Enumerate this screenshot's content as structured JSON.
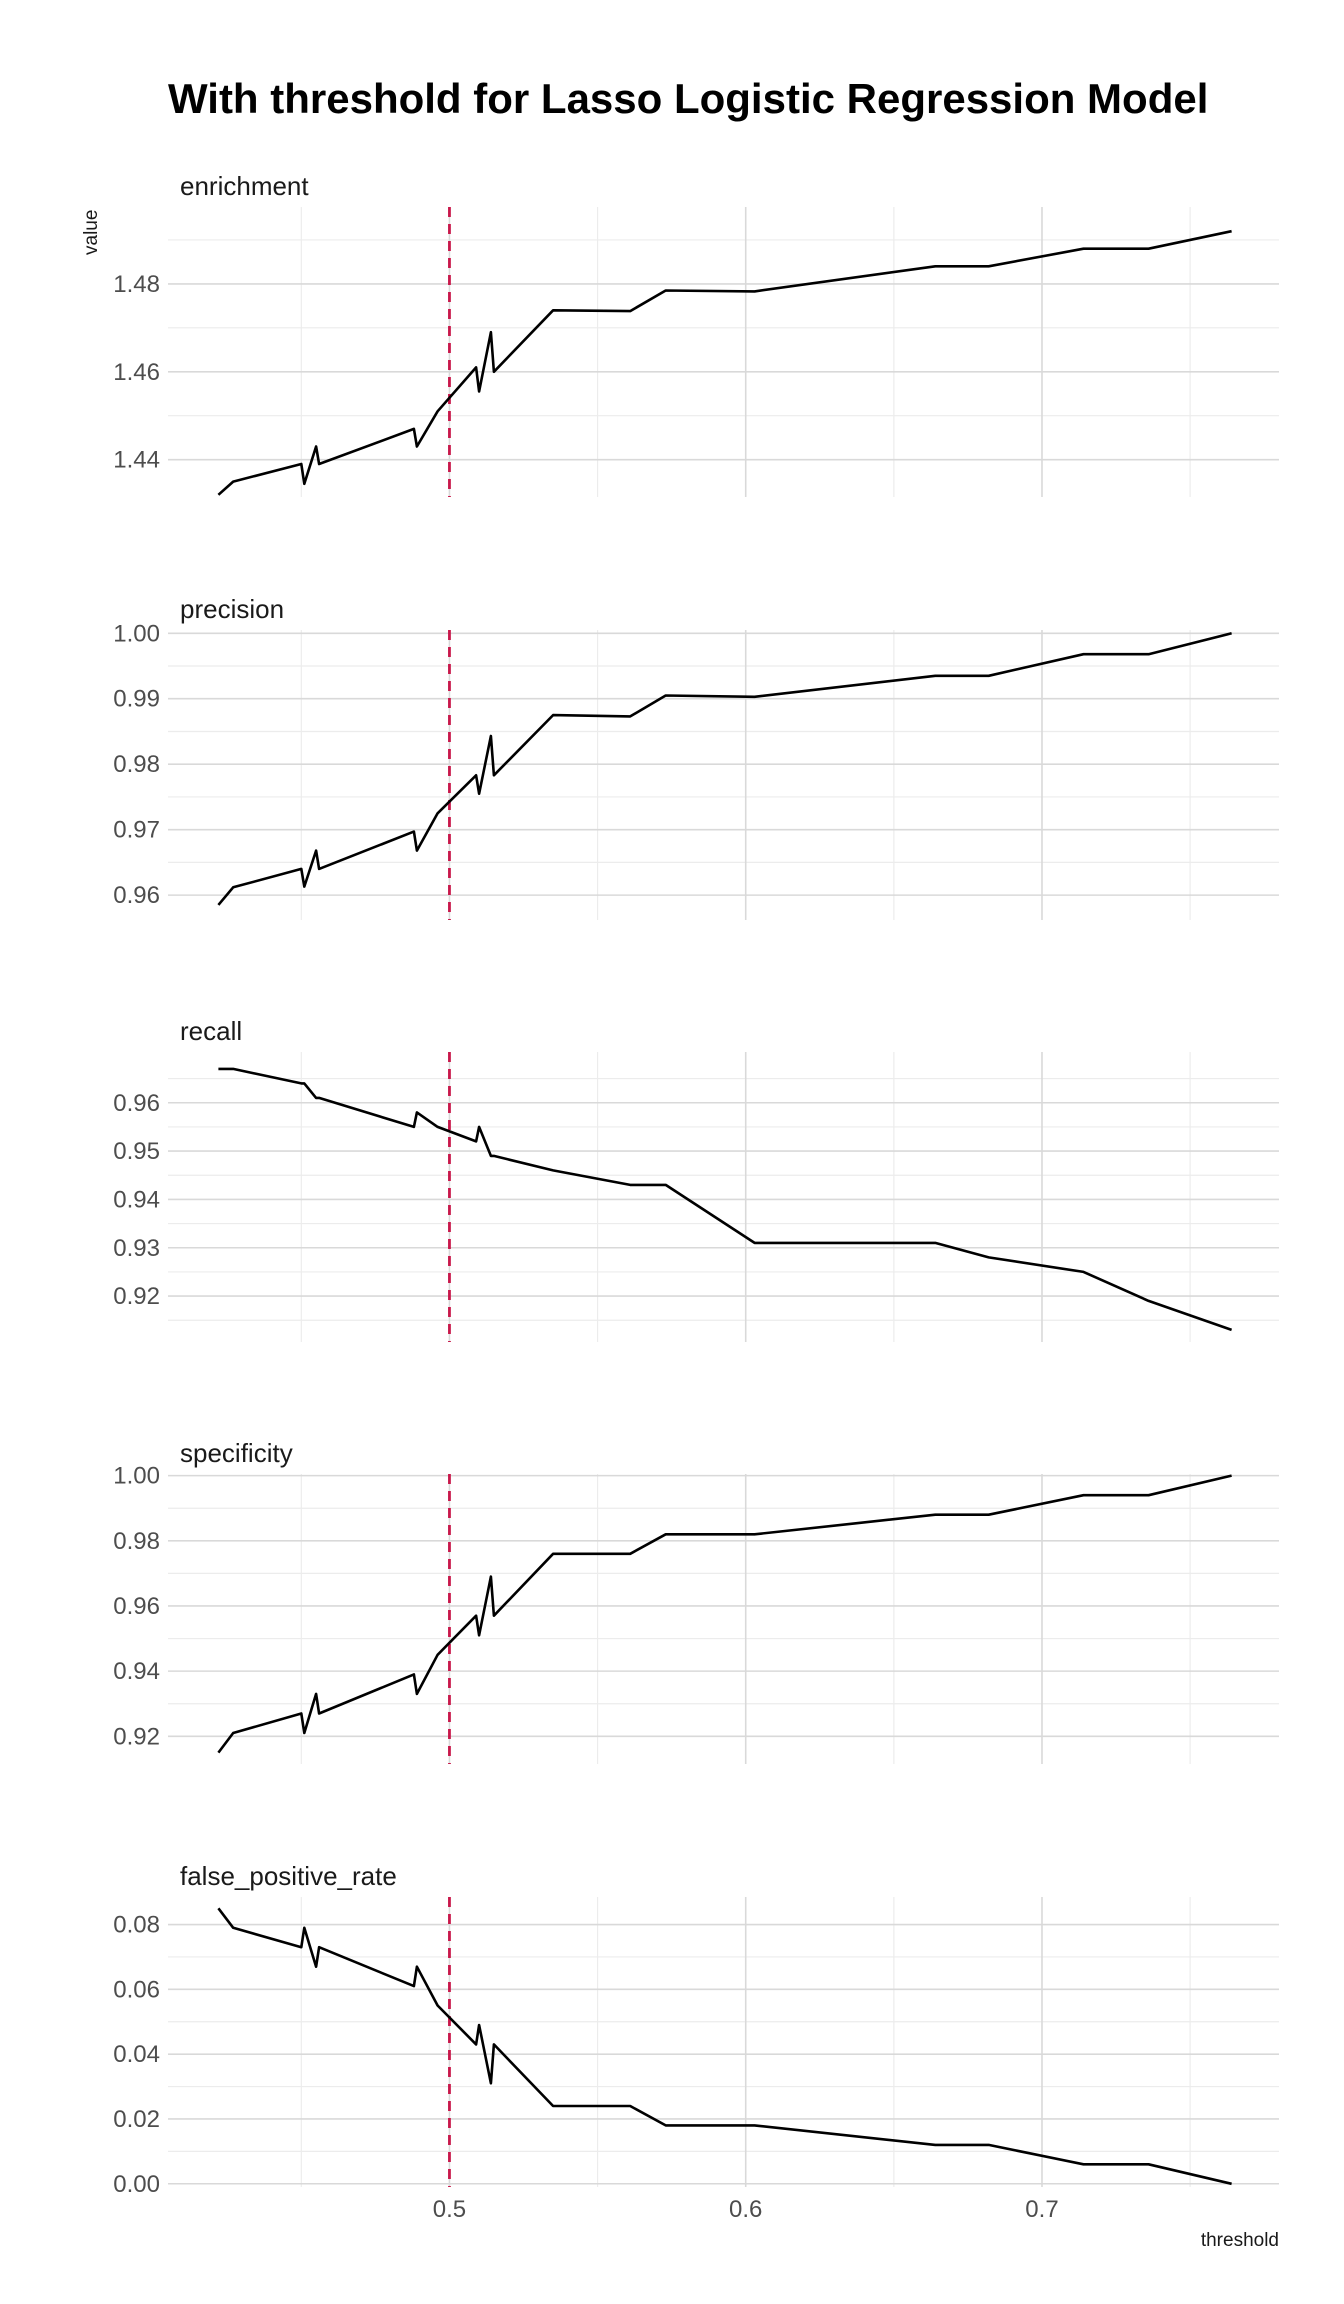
{
  "chart_data": {
    "type": "line",
    "title": "With threshold for Lasso Logistic Regression Model",
    "xlabel": "threshold",
    "ylabel": "value",
    "xlim": [
      0.405,
      0.78
    ],
    "x_ticks": [
      0.5,
      0.6,
      0.7
    ],
    "x_tick_labels": [
      "0.5",
      "0.6",
      "0.7"
    ],
    "reference_line": {
      "x": 0.5,
      "style": "dashed",
      "color": "#c8174a"
    },
    "grid": true,
    "x": [
      0.422,
      0.427,
      0.45,
      0.451,
      0.455,
      0.456,
      0.488,
      0.489,
      0.496,
      0.509,
      0.51,
      0.514,
      0.515,
      0.535,
      0.561,
      0.573,
      0.603,
      0.664,
      0.682,
      0.714,
      0.736,
      0.764
    ],
    "panels": [
      {
        "name": "enrichment",
        "ylim": [
          1.4315,
          1.4975
        ],
        "y_ticks": [
          1.44,
          1.46,
          1.48
        ],
        "y_tick_labels": [
          "1.44",
          "1.46",
          "1.48"
        ],
        "values": [
          1.432,
          1.435,
          1.439,
          1.4345,
          1.443,
          1.439,
          1.447,
          1.443,
          1.451,
          1.461,
          1.4555,
          1.469,
          1.46,
          1.474,
          1.4738,
          1.4785,
          1.4783,
          1.484,
          1.484,
          1.488,
          1.488,
          1.492
        ]
      },
      {
        "name": "precision",
        "ylim": [
          0.9562,
          1.0005
        ],
        "y_ticks": [
          0.96,
          0.97,
          0.98,
          0.99,
          1.0
        ],
        "y_tick_labels": [
          "0.96",
          "0.97",
          "0.98",
          "0.99",
          "1.00"
        ],
        "values": [
          0.9585,
          0.9612,
          0.964,
          0.9613,
          0.9668,
          0.964,
          0.9697,
          0.9668,
          0.9725,
          0.9783,
          0.9755,
          0.9843,
          0.9783,
          0.9875,
          0.9873,
          0.9905,
          0.9903,
          0.9935,
          0.9935,
          0.9968,
          0.9968,
          1.0
        ]
      },
      {
        "name": "recall",
        "ylim": [
          0.9105,
          0.9705
        ],
        "y_ticks": [
          0.92,
          0.93,
          0.94,
          0.95,
          0.96
        ],
        "y_tick_labels": [
          "0.92",
          "0.93",
          "0.94",
          "0.95",
          "0.96"
        ],
        "values": [
          0.967,
          0.967,
          0.964,
          0.964,
          0.961,
          0.961,
          0.955,
          0.958,
          0.955,
          0.952,
          0.955,
          0.949,
          0.949,
          0.946,
          0.943,
          0.943,
          0.931,
          0.931,
          0.928,
          0.925,
          0.919,
          0.913
        ]
      },
      {
        "name": "specificity",
        "ylim": [
          0.9115,
          1.0005
        ],
        "y_ticks": [
          0.92,
          0.94,
          0.96,
          0.98,
          1.0
        ],
        "y_tick_labels": [
          "0.92",
          "0.94",
          "0.96",
          "0.98",
          "1.00"
        ],
        "values": [
          0.915,
          0.921,
          0.927,
          0.921,
          0.933,
          0.927,
          0.939,
          0.933,
          0.945,
          0.957,
          0.951,
          0.969,
          0.957,
          0.976,
          0.976,
          0.982,
          0.982,
          0.988,
          0.988,
          0.994,
          0.994,
          1.0
        ]
      },
      {
        "name": "false_positive_rate",
        "ylim": [
          -0.001,
          0.0885
        ],
        "y_ticks": [
          0.0,
          0.02,
          0.04,
          0.06,
          0.08
        ],
        "y_tick_labels": [
          "0.00",
          "0.02",
          "0.04",
          "0.06",
          "0.08"
        ],
        "values": [
          0.085,
          0.079,
          0.073,
          0.079,
          0.067,
          0.073,
          0.061,
          0.067,
          0.055,
          0.043,
          0.049,
          0.031,
          0.043,
          0.024,
          0.024,
          0.018,
          0.018,
          0.012,
          0.012,
          0.006,
          0.006,
          0.0
        ]
      }
    ]
  }
}
